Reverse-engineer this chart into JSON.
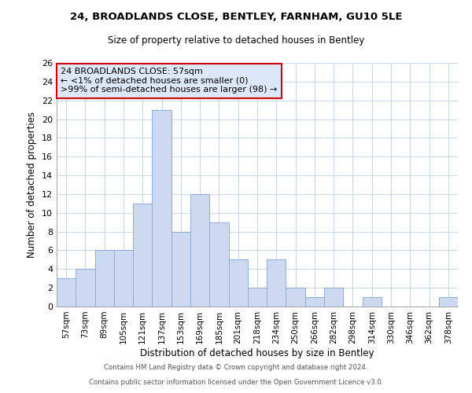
{
  "title1": "24, BROADLANDS CLOSE, BENTLEY, FARNHAM, GU10 5LE",
  "title2": "Size of property relative to detached houses in Bentley",
  "xlabel": "Distribution of detached houses by size in Bentley",
  "ylabel": "Number of detached properties",
  "bar_color": "#ccd9f0",
  "bar_edge_color": "#8badd4",
  "categories": [
    "57sqm",
    "73sqm",
    "89sqm",
    "105sqm",
    "121sqm",
    "137sqm",
    "153sqm",
    "169sqm",
    "185sqm",
    "201sqm",
    "218sqm",
    "234sqm",
    "250sqm",
    "266sqm",
    "282sqm",
    "298sqm",
    "314sqm",
    "330sqm",
    "346sqm",
    "362sqm",
    "378sqm"
  ],
  "values": [
    3,
    4,
    6,
    6,
    11,
    21,
    8,
    12,
    9,
    5,
    2,
    5,
    2,
    1,
    2,
    0,
    1,
    0,
    0,
    0,
    1
  ],
  "ylim": [
    0,
    26
  ],
  "yticks": [
    0,
    2,
    4,
    6,
    8,
    10,
    12,
    14,
    16,
    18,
    20,
    22,
    24,
    26
  ],
  "annotation_line1": "24 BROADLANDS CLOSE: 57sqm",
  "annotation_line2": "← <1% of detached houses are smaller (0)",
  "annotation_line3": ">99% of semi-detached houses are larger (98) →",
  "annotation_box_col": "#dce8f8",
  "annotation_box_border": "#cc0000",
  "footer1": "Contains HM Land Registry data © Crown copyright and database right 2024.",
  "footer2": "Contains public sector information licensed under the Open Government Licence v3.0.",
  "background_color": "#ffffff",
  "grid_color": "#c8d8e8"
}
